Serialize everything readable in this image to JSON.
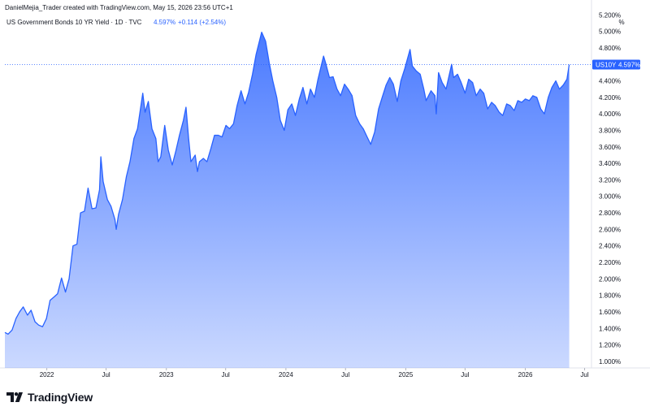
{
  "header": {
    "attribution": "DanielMejia_Trader created with TradingView.com, May 15, 2026 23:56 UTC+1",
    "symbol_name": "US Government Bonds 10 YR Yield · 1D · TVC",
    "last_value": "4.597%",
    "change": "+0.114 (+2.54%)"
  },
  "axis": {
    "unit": "%",
    "price_badge_symbol": "US10Y",
    "price_badge_value": "4.597%"
  },
  "brand": {
    "logo_text": "TradingView",
    "accent_color": "#2962ff"
  },
  "chart_data": {
    "type": "area",
    "title": "US Government Bonds 10 YR Yield · 1D · TVC",
    "xlabel": "",
    "ylabel": "%",
    "ylim": [
      0.92,
      5.38
    ],
    "xlim": [
      "2021-08-26",
      "2026-07-22"
    ],
    "y_ticks": [
      "1.000%",
      "1.200%",
      "1.400%",
      "1.600%",
      "1.800%",
      "2.000%",
      "2.200%",
      "2.400%",
      "2.600%",
      "2.800%",
      "3.000%",
      "3.200%",
      "3.400%",
      "3.600%",
      "3.800%",
      "4.000%",
      "4.200%",
      "4.400%",
      "4.600%",
      "4.800%",
      "5.000%",
      "5.200%"
    ],
    "x_ticks": [
      {
        "date": "2022-01-01",
        "label": "2022"
      },
      {
        "date": "2022-07-01",
        "label": "Jul"
      },
      {
        "date": "2023-01-01",
        "label": "2023"
      },
      {
        "date": "2023-07-01",
        "label": "Jul"
      },
      {
        "date": "2024-01-01",
        "label": "2024"
      },
      {
        "date": "2024-07-01",
        "label": "Jul"
      },
      {
        "date": "2025-01-01",
        "label": "2025"
      },
      {
        "date": "2025-07-01",
        "label": "Jul"
      },
      {
        "date": "2026-01-01",
        "label": "2026"
      },
      {
        "date": "2026-07-01",
        "label": "Jul"
      }
    ],
    "series": [
      {
        "color": "#2962ff",
        "points": [
          [
            "2021-08-26",
            1.35
          ],
          [
            "2021-09-05",
            1.33
          ],
          [
            "2021-09-17",
            1.38
          ],
          [
            "2021-09-29",
            1.52
          ],
          [
            "2021-10-10",
            1.6
          ],
          [
            "2021-10-21",
            1.66
          ],
          [
            "2021-11-03",
            1.56
          ],
          [
            "2021-11-14",
            1.62
          ],
          [
            "2021-11-26",
            1.48
          ],
          [
            "2021-12-07",
            1.44
          ],
          [
            "2021-12-19",
            1.42
          ],
          [
            "2021-12-31",
            1.52
          ],
          [
            "2022-01-11",
            1.74
          ],
          [
            "2022-01-23",
            1.78
          ],
          [
            "2022-02-03",
            1.82
          ],
          [
            "2022-02-15",
            2.01
          ],
          [
            "2022-02-27",
            1.84
          ],
          [
            "2022-03-10",
            2.0
          ],
          [
            "2022-03-22",
            2.4
          ],
          [
            "2022-04-03",
            2.42
          ],
          [
            "2022-04-14",
            2.8
          ],
          [
            "2022-04-26",
            2.82
          ],
          [
            "2022-05-07",
            3.1
          ],
          [
            "2022-05-19",
            2.85
          ],
          [
            "2022-05-31",
            2.86
          ],
          [
            "2022-06-11",
            3.08
          ],
          [
            "2022-06-15",
            3.48
          ],
          [
            "2022-06-22",
            3.18
          ],
          [
            "2022-07-05",
            2.96
          ],
          [
            "2022-07-16",
            2.88
          ],
          [
            "2022-07-28",
            2.72
          ],
          [
            "2022-08-01",
            2.6
          ],
          [
            "2022-08-08",
            2.78
          ],
          [
            "2022-08-20",
            2.96
          ],
          [
            "2022-09-01",
            3.24
          ],
          [
            "2022-09-12",
            3.42
          ],
          [
            "2022-09-24",
            3.7
          ],
          [
            "2022-10-05",
            3.82
          ],
          [
            "2022-10-21",
            4.25
          ],
          [
            "2022-10-28",
            4.02
          ],
          [
            "2022-11-07",
            4.15
          ],
          [
            "2022-11-18",
            3.82
          ],
          [
            "2022-11-30",
            3.7
          ],
          [
            "2022-12-07",
            3.42
          ],
          [
            "2022-12-15",
            3.48
          ],
          [
            "2022-12-27",
            3.86
          ],
          [
            "2023-01-07",
            3.56
          ],
          [
            "2023-01-19",
            3.38
          ],
          [
            "2023-01-30",
            3.55
          ],
          [
            "2023-02-10",
            3.74
          ],
          [
            "2023-02-22",
            3.92
          ],
          [
            "2023-03-02",
            4.08
          ],
          [
            "2023-03-10",
            3.7
          ],
          [
            "2023-03-17",
            3.42
          ],
          [
            "2023-03-30",
            3.5
          ],
          [
            "2023-04-06",
            3.3
          ],
          [
            "2023-04-12",
            3.42
          ],
          [
            "2023-04-24",
            3.46
          ],
          [
            "2023-05-05",
            3.42
          ],
          [
            "2023-05-17",
            3.58
          ],
          [
            "2023-05-28",
            3.74
          ],
          [
            "2023-06-09",
            3.74
          ],
          [
            "2023-06-20",
            3.72
          ],
          [
            "2023-07-02",
            3.86
          ],
          [
            "2023-07-13",
            3.82
          ],
          [
            "2023-07-25",
            3.88
          ],
          [
            "2023-08-05",
            4.1
          ],
          [
            "2023-08-17",
            4.28
          ],
          [
            "2023-08-29",
            4.12
          ],
          [
            "2023-09-09",
            4.26
          ],
          [
            "2023-09-21",
            4.48
          ],
          [
            "2023-10-02",
            4.72
          ],
          [
            "2023-10-19",
            4.99
          ],
          [
            "2023-10-31",
            4.88
          ],
          [
            "2023-11-11",
            4.62
          ],
          [
            "2023-11-22",
            4.4
          ],
          [
            "2023-12-04",
            4.2
          ],
          [
            "2023-12-15",
            3.92
          ],
          [
            "2023-12-27",
            3.8
          ],
          [
            "2024-01-07",
            4.05
          ],
          [
            "2024-01-19",
            4.12
          ],
          [
            "2024-01-30",
            3.98
          ],
          [
            "2024-02-11",
            4.18
          ],
          [
            "2024-02-22",
            4.32
          ],
          [
            "2024-03-05",
            4.12
          ],
          [
            "2024-03-16",
            4.3
          ],
          [
            "2024-03-28",
            4.2
          ],
          [
            "2024-04-08",
            4.42
          ],
          [
            "2024-04-25",
            4.7
          ],
          [
            "2024-05-01",
            4.62
          ],
          [
            "2024-05-13",
            4.44
          ],
          [
            "2024-05-24",
            4.45
          ],
          [
            "2024-06-05",
            4.3
          ],
          [
            "2024-06-16",
            4.22
          ],
          [
            "2024-06-28",
            4.36
          ],
          [
            "2024-07-09",
            4.3
          ],
          [
            "2024-07-21",
            4.22
          ],
          [
            "2024-08-01",
            3.98
          ],
          [
            "2024-08-13",
            3.88
          ],
          [
            "2024-08-24",
            3.82
          ],
          [
            "2024-09-05",
            3.72
          ],
          [
            "2024-09-16",
            3.63
          ],
          [
            "2024-09-28",
            3.78
          ],
          [
            "2024-10-10",
            4.06
          ],
          [
            "2024-10-21",
            4.2
          ],
          [
            "2024-11-02",
            4.35
          ],
          [
            "2024-11-13",
            4.44
          ],
          [
            "2024-11-24",
            4.36
          ],
          [
            "2024-12-06",
            4.15
          ],
          [
            "2024-12-17",
            4.4
          ],
          [
            "2024-12-29",
            4.55
          ],
          [
            "2025-01-14",
            4.78
          ],
          [
            "2025-01-21",
            4.58
          ],
          [
            "2025-02-02",
            4.52
          ],
          [
            "2025-02-14",
            4.48
          ],
          [
            "2025-02-25",
            4.3
          ],
          [
            "2025-03-04",
            4.16
          ],
          [
            "2025-03-19",
            4.28
          ],
          [
            "2025-03-31",
            4.22
          ],
          [
            "2025-04-04",
            4.0
          ],
          [
            "2025-04-11",
            4.5
          ],
          [
            "2025-04-22",
            4.38
          ],
          [
            "2025-05-04",
            4.3
          ],
          [
            "2025-05-21",
            4.6
          ],
          [
            "2025-05-27",
            4.44
          ],
          [
            "2025-06-08",
            4.48
          ],
          [
            "2025-06-19",
            4.38
          ],
          [
            "2025-07-01",
            4.25
          ],
          [
            "2025-07-12",
            4.42
          ],
          [
            "2025-07-24",
            4.38
          ],
          [
            "2025-08-04",
            4.22
          ],
          [
            "2025-08-16",
            4.3
          ],
          [
            "2025-08-27",
            4.25
          ],
          [
            "2025-09-08",
            4.06
          ],
          [
            "2025-09-20",
            4.14
          ],
          [
            "2025-10-01",
            4.1
          ],
          [
            "2025-10-13",
            4.02
          ],
          [
            "2025-10-24",
            3.98
          ],
          [
            "2025-11-05",
            4.12
          ],
          [
            "2025-11-16",
            4.1
          ],
          [
            "2025-11-28",
            4.04
          ],
          [
            "2025-12-09",
            4.16
          ],
          [
            "2025-12-21",
            4.14
          ],
          [
            "2026-01-01",
            4.18
          ],
          [
            "2026-01-13",
            4.16
          ],
          [
            "2026-01-24",
            4.22
          ],
          [
            "2026-02-05",
            4.2
          ],
          [
            "2026-02-17",
            4.06
          ],
          [
            "2026-02-28",
            4.0
          ],
          [
            "2026-03-12",
            4.2
          ],
          [
            "2026-03-23",
            4.32
          ],
          [
            "2026-04-04",
            4.4
          ],
          [
            "2026-04-15",
            4.3
          ],
          [
            "2026-04-27",
            4.35
          ],
          [
            "2026-05-08",
            4.42
          ],
          [
            "2026-05-15",
            4.597
          ]
        ]
      }
    ]
  }
}
